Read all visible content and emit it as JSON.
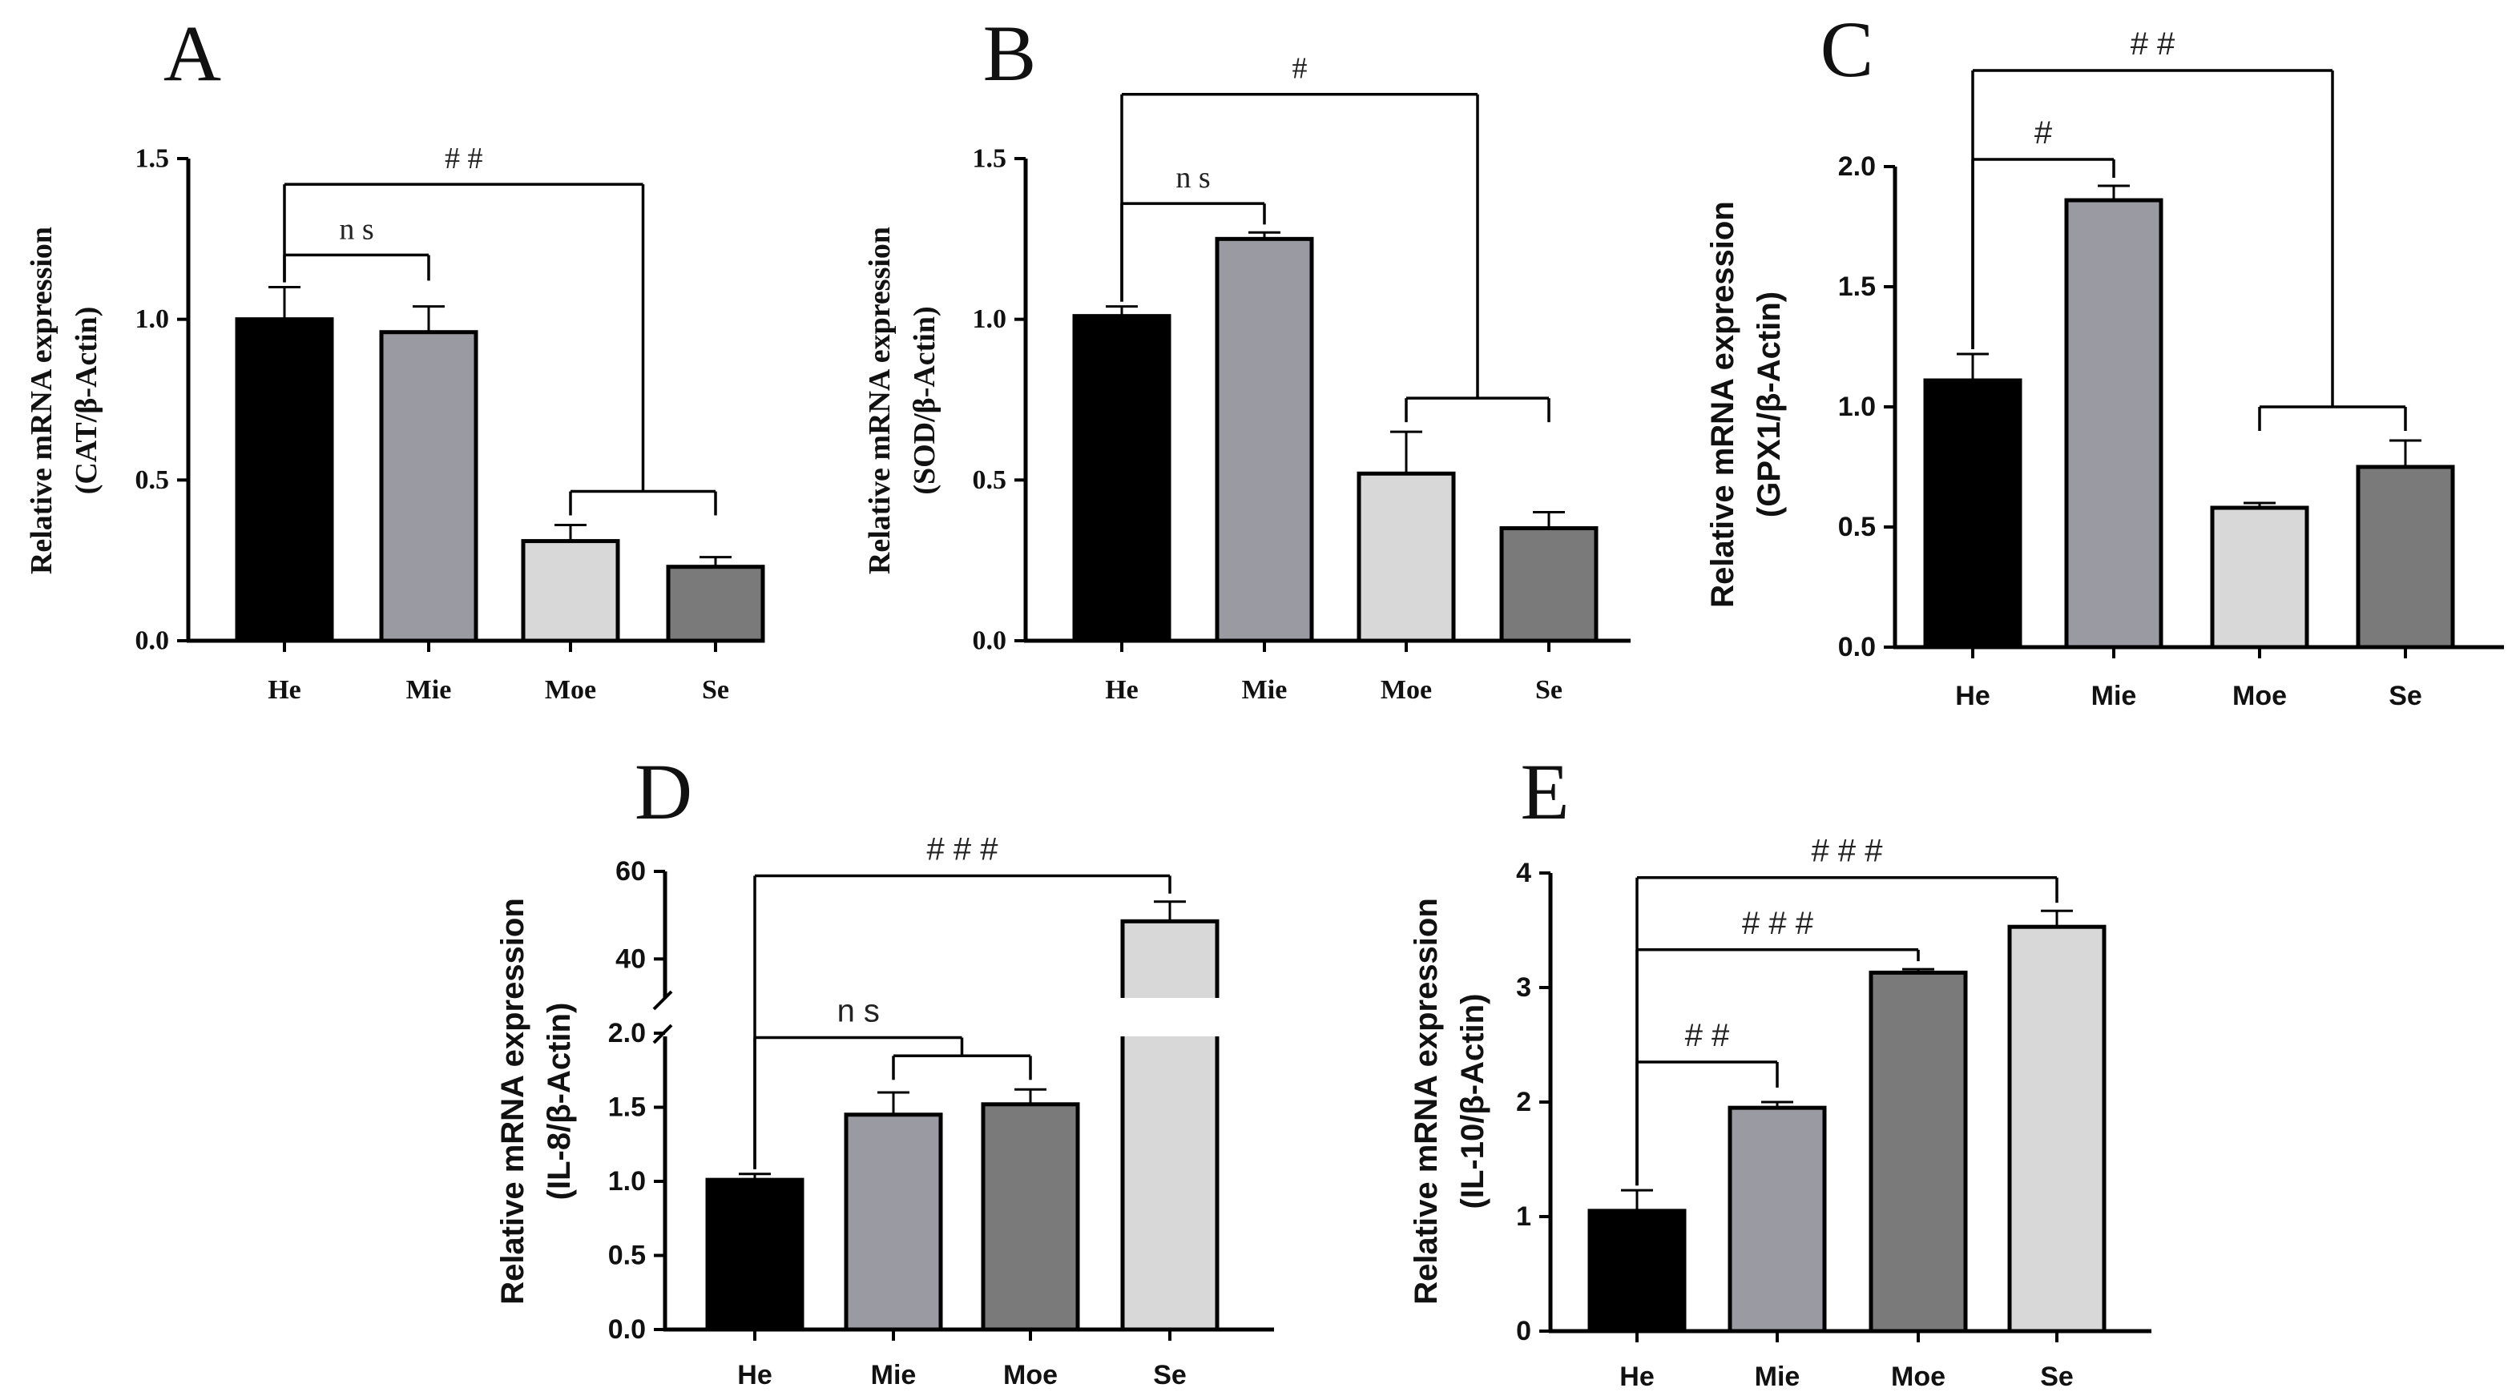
{
  "chart_data": [
    {
      "panel": "A",
      "type": "bar",
      "ylabel_line1": "Relative mRNA expression",
      "ylabel_line2": "(CAT/β-Actin)",
      "categories": [
        "He",
        "Mie",
        "Moe",
        "Se"
      ],
      "values": [
        1.0,
        0.96,
        0.31,
        0.23
      ],
      "errors": [
        0.1,
        0.08,
        0.05,
        0.03
      ],
      "colors": [
        "#000000",
        "#9a9aa2",
        "#d8d8d8",
        "#7a7a7a"
      ],
      "ylim": [
        0,
        1.5
      ],
      "yticks": [
        0.0,
        0.5,
        1.0,
        1.5
      ],
      "ytick_labels": [
        "0.0",
        "0.5",
        "1.0",
        "1.5"
      ],
      "annotations": [
        {
          "label": "ns",
          "groups": [
            [
              0
            ],
            [
              1
            ]
          ],
          "level": 1.2
        },
        {
          "label": "##",
          "groups": [
            [
              0
            ],
            [
              2,
              3
            ]
          ],
          "level": 1.42
        }
      ]
    },
    {
      "panel": "B",
      "type": "bar",
      "ylabel_line1": "Relative mRNA expression",
      "ylabel_line2": "(SOD/β-Actin)",
      "categories": [
        "He",
        "Mie",
        "Moe",
        "Se"
      ],
      "values": [
        1.01,
        1.25,
        0.52,
        0.35
      ],
      "errors": [
        0.03,
        0.02,
        0.13,
        0.05
      ],
      "colors": [
        "#000000",
        "#9a9aa2",
        "#d8d8d8",
        "#7a7a7a"
      ],
      "ylim": [
        0,
        1.5
      ],
      "yticks": [
        0.0,
        0.5,
        1.0,
        1.5
      ],
      "ytick_labels": [
        "0.0",
        "0.5",
        "1.0",
        "1.5"
      ],
      "annotations": [
        {
          "label": "ns",
          "groups": [
            [
              0
            ],
            [
              1
            ]
          ],
          "level": 1.36
        },
        {
          "label": "#",
          "groups": [
            [
              0
            ],
            [
              2,
              3
            ]
          ],
          "level": 1.7
        }
      ]
    },
    {
      "panel": "C",
      "type": "bar",
      "ylabel_line1": "Relative mRNA expression",
      "ylabel_line2": "(GPX1/β-Actin)",
      "categories": [
        "He",
        "Mie",
        "Moe",
        "Se"
      ],
      "values": [
        1.11,
        1.86,
        0.58,
        0.75
      ],
      "errors": [
        0.11,
        0.06,
        0.02,
        0.11
      ],
      "colors": [
        "#000000",
        "#9a9aa2",
        "#d8d8d8",
        "#7a7a7a"
      ],
      "ylim": [
        0,
        2.0
      ],
      "yticks": [
        0.0,
        0.5,
        1.0,
        1.5,
        2.0
      ],
      "ytick_labels": [
        "0.0",
        "0.5",
        "1.0",
        "1.5",
        "2.0"
      ],
      "annotations": [
        {
          "label": "#",
          "groups": [
            [
              0
            ],
            [
              1
            ]
          ],
          "level": 2.03
        },
        {
          "label": "##",
          "groups": [
            [
              0
            ],
            [
              2,
              3
            ]
          ],
          "level": 2.4
        }
      ]
    },
    {
      "panel": "D",
      "type": "bar",
      "ylabel_line1": "Relative mRNA expression",
      "ylabel_line2": "(IL-8/β-Actin)",
      "categories": [
        "He",
        "Mie",
        "Moe",
        "Se"
      ],
      "values": [
        1.01,
        1.45,
        1.52,
        48.6
      ],
      "errors": [
        0.04,
        0.15,
        0.1,
        4.5
      ],
      "colors": [
        "#000000",
        "#9a9aa2",
        "#7a7a7a",
        "#d8d8d8"
      ],
      "axis_break": {
        "lower_max": 2.0,
        "upper_min": 30,
        "upper_max": 60
      },
      "yticks": [
        0.0,
        0.5,
        1.0,
        1.5,
        2.0,
        40,
        60
      ],
      "ytick_labels": [
        "0.0",
        "0.5",
        "1.0",
        "1.5",
        "2.0",
        "40",
        "60"
      ],
      "annotations": [
        {
          "label": "ns",
          "groups": [
            [
              0
            ],
            [
              1,
              2
            ]
          ],
          "level": 1.97
        },
        {
          "label": "###",
          "groups": [
            [
              0
            ],
            [
              3
            ]
          ],
          "level": 59.0
        }
      ]
    },
    {
      "panel": "E",
      "type": "bar",
      "ylabel_line1": "Relative mRNA expression",
      "ylabel_line2": "(IL-10/β-Actin)",
      "categories": [
        "He",
        "Mie",
        "Moe",
        "Se"
      ],
      "values": [
        1.05,
        1.95,
        3.13,
        3.53
      ],
      "errors": [
        0.18,
        0.05,
        0.03,
        0.14
      ],
      "colors": [
        "#000000",
        "#9a9aa2",
        "#7a7a7a",
        "#d8d8d8"
      ],
      "ylim": [
        0,
        4
      ],
      "yticks": [
        0,
        1,
        2,
        3,
        4
      ],
      "ytick_labels": [
        "0",
        "1",
        "2",
        "3",
        "4"
      ],
      "annotations": [
        {
          "label": "##",
          "groups": [
            [
              0
            ],
            [
              1
            ]
          ],
          "level": 2.35
        },
        {
          "label": "###",
          "groups": [
            [
              0
            ],
            [
              2
            ]
          ],
          "level": 3.33
        },
        {
          "label": "###",
          "groups": [
            [
              0
            ],
            [
              3
            ]
          ],
          "level": 3.96
        }
      ]
    }
  ]
}
